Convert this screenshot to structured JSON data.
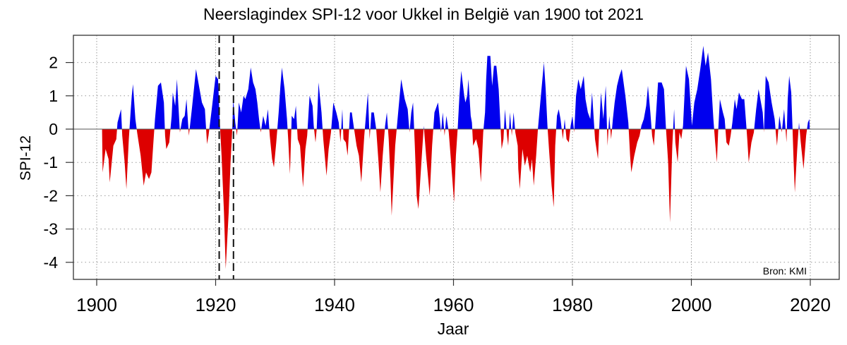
{
  "chart_data": {
    "type": "area",
    "title": "Neerslagindex SPI-12 voor Ukkel in België van 1900 tot 2021",
    "xlabel": "Jaar",
    "ylabel": "SPI-12",
    "source_note": "Bron: KMI",
    "xlim": [
      1896,
      2025
    ],
    "ylim": [
      -4.5,
      2.8
    ],
    "x_ticks": [
      1900,
      1920,
      1940,
      1960,
      1980,
      2000,
      2020
    ],
    "x_tick_labels": [
      "1900",
      "1920",
      "1940",
      "1960",
      "1980",
      "2000",
      "2020"
    ],
    "y_ticks": [
      2,
      1,
      0,
      -1,
      -2,
      -3,
      -4
    ],
    "y_tick_labels": [
      "2",
      "1",
      "0",
      "-1",
      "-2",
      "-3",
      "-4"
    ],
    "grid": true,
    "marker_lines": [
      1920.6,
      1923.0
    ],
    "colors": {
      "positive": "#0000ee",
      "negative": "#dd0000",
      "grid": "#999999"
    },
    "series": [
      [
        1900.9,
        0
      ],
      [
        1901.0,
        -1.3
      ],
      [
        1901.5,
        -0.6
      ],
      [
        1902.0,
        -0.9
      ],
      [
        1902.2,
        -1.6
      ],
      [
        1902.8,
        -0.5
      ],
      [
        1903.3,
        -0.3
      ],
      [
        1903.5,
        0.2
      ],
      [
        1904.1,
        0.6
      ],
      [
        1904.3,
        -0.2
      ],
      [
        1904.7,
        -1.0
      ],
      [
        1905.0,
        -1.8
      ],
      [
        1905.4,
        -0.3
      ],
      [
        1905.7,
        0.5
      ],
      [
        1905.9,
        1.0
      ],
      [
        1906.1,
        1.35
      ],
      [
        1906.5,
        0.3
      ],
      [
        1906.8,
        -0.1
      ],
      [
        1907.4,
        -0.8
      ],
      [
        1907.9,
        -1.7
      ],
      [
        1908.3,
        -1.3
      ],
      [
        1908.8,
        -1.5
      ],
      [
        1909.2,
        -1.3
      ],
      [
        1909.5,
        -0.5
      ],
      [
        1909.8,
        0.3
      ],
      [
        1910.3,
        1.3
      ],
      [
        1910.8,
        1.4
      ],
      [
        1911.3,
        0.8
      ],
      [
        1911.5,
        -0.2
      ],
      [
        1911.7,
        -0.6
      ],
      [
        1912.2,
        -0.4
      ],
      [
        1912.6,
        0.4
      ],
      [
        1912.8,
        1.1
      ],
      [
        1913.2,
        0.7
      ],
      [
        1913.5,
        1.5
      ],
      [
        1914.0,
        -0.1
      ],
      [
        1914.4,
        0.3
      ],
      [
        1914.8,
        0.4
      ],
      [
        1915.1,
        0.9
      ],
      [
        1915.5,
        -0.2
      ],
      [
        1916.0,
        0.6
      ],
      [
        1916.7,
        1.8
      ],
      [
        1917.2,
        1.3
      ],
      [
        1917.7,
        0.8
      ],
      [
        1918.2,
        0.6
      ],
      [
        1918.55,
        -0.45
      ],
      [
        1918.8,
        -0.2
      ],
      [
        1919.35,
        0.6
      ],
      [
        1920.0,
        1.6
      ],
      [
        1920.4,
        1.5
      ],
      [
        1920.7,
        0.2
      ],
      [
        1921.0,
        -0.8
      ],
      [
        1921.4,
        -2.5
      ],
      [
        1921.7,
        -4.2
      ],
      [
        1922.2,
        -2.5
      ],
      [
        1922.5,
        -1.0
      ],
      [
        1922.8,
        0
      ],
      [
        1922.95,
        0.9
      ],
      [
        1923.3,
        0.2
      ],
      [
        1923.6,
        -0.2
      ],
      [
        1923.9,
        0.8
      ],
      [
        1924.3,
        0.5
      ],
      [
        1924.7,
        1.0
      ],
      [
        1925.0,
        0.9
      ],
      [
        1925.5,
        1.2
      ],
      [
        1925.9,
        1.85
      ],
      [
        1926.3,
        1.4
      ],
      [
        1926.7,
        1.2
      ],
      [
        1927.0,
        0.8
      ],
      [
        1927.3,
        0.3
      ],
      [
        1927.6,
        -0.1
      ],
      [
        1928.0,
        0.4
      ],
      [
        1928.4,
        0.1
      ],
      [
        1928.8,
        0.6
      ],
      [
        1929.1,
        -0.2
      ],
      [
        1929.5,
        -0.9
      ],
      [
        1929.8,
        -1.15
      ],
      [
        1930.2,
        -0.4
      ],
      [
        1930.6,
        0.5
      ],
      [
        1930.9,
        1.3
      ],
      [
        1931.15,
        1.85
      ],
      [
        1931.6,
        1.2
      ],
      [
        1932.0,
        0.3
      ],
      [
        1932.2,
        -0.3
      ],
      [
        1932.5,
        -1.35
      ],
      [
        1932.8,
        0.4
      ],
      [
        1933.2,
        0.3
      ],
      [
        1933.5,
        0.7
      ],
      [
        1933.8,
        -0.3
      ],
      [
        1934.2,
        -0.5
      ],
      [
        1934.7,
        -1.75
      ],
      [
        1935.1,
        -0.6
      ],
      [
        1935.4,
        -0.2
      ],
      [
        1935.8,
        1.0
      ],
      [
        1936.3,
        0.7
      ],
      [
        1936.5,
        0.1
      ],
      [
        1936.8,
        -0.4
      ],
      [
        1937.0,
        0
      ],
      [
        1937.3,
        1.4
      ],
      [
        1937.8,
        0.5
      ],
      [
        1938.1,
        -0.3
      ],
      [
        1938.65,
        -1.4
      ],
      [
        1939.0,
        -0.6
      ],
      [
        1939.4,
        -0.1
      ],
      [
        1939.8,
        0.8
      ],
      [
        1940.3,
        0.5
      ],
      [
        1940.7,
        0.2
      ],
      [
        1941.0,
        -0.4
      ],
      [
        1941.3,
        0.6
      ],
      [
        1941.5,
        -0.3
      ],
      [
        1941.9,
        -0.4
      ],
      [
        1942.2,
        -0.8
      ],
      [
        1942.6,
        0.5
      ],
      [
        1942.9,
        0.5
      ],
      [
        1943.2,
        0.1
      ],
      [
        1943.7,
        -0.5
      ],
      [
        1944.1,
        -0.8
      ],
      [
        1944.5,
        -1.6
      ],
      [
        1945.0,
        -0.2
      ],
      [
        1945.6,
        1.1
      ],
      [
        1945.9,
        -0.3
      ],
      [
        1946.2,
        0.5
      ],
      [
        1946.6,
        0.5
      ],
      [
        1947.0,
        0.0
      ],
      [
        1947.4,
        -1.0
      ],
      [
        1947.7,
        -1.9
      ],
      [
        1948.1,
        -0.8
      ],
      [
        1948.5,
        0.1
      ],
      [
        1948.8,
        0.5
      ],
      [
        1949.1,
        -0.3
      ],
      [
        1949.4,
        -1.5
      ],
      [
        1949.6,
        -2.6
      ],
      [
        1950.2,
        -0.5
      ],
      [
        1950.7,
        0.5
      ],
      [
        1951.2,
        1.5
      ],
      [
        1951.8,
        0.9
      ],
      [
        1952.3,
        0.6
      ],
      [
        1952.6,
        -0.1
      ],
      [
        1952.9,
        0.5
      ],
      [
        1953.2,
        0.8
      ],
      [
        1953.5,
        -0.5
      ],
      [
        1953.8,
        -2.0
      ],
      [
        1954.1,
        -2.4
      ],
      [
        1954.6,
        -1.0
      ],
      [
        1955.0,
        0.1
      ],
      [
        1955.4,
        -0.8
      ],
      [
        1956.0,
        -2.0
      ],
      [
        1956.4,
        -0.5
      ],
      [
        1956.8,
        0.5
      ],
      [
        1957.4,
        0.8
      ],
      [
        1957.7,
        0.3
      ],
      [
        1957.9,
        -0.1
      ],
      [
        1958.2,
        0.5
      ],
      [
        1958.5,
        -0.2
      ],
      [
        1958.8,
        0.4
      ],
      [
        1959.2,
        -0.1
      ],
      [
        1959.6,
        -1.0
      ],
      [
        1960.1,
        -2.2
      ],
      [
        1960.4,
        -0.8
      ],
      [
        1960.7,
        0
      ],
      [
        1961.0,
        1.0
      ],
      [
        1961.3,
        1.75
      ],
      [
        1961.8,
        1.0
      ],
      [
        1962.0,
        0.8
      ],
      [
        1962.3,
        1.0
      ],
      [
        1962.5,
        1.5
      ],
      [
        1962.9,
        0.4
      ],
      [
        1963.1,
        0.2
      ],
      [
        1963.3,
        -0.5
      ],
      [
        1963.8,
        -0.3
      ],
      [
        1964.2,
        -0.6
      ],
      [
        1964.6,
        -1.6
      ],
      [
        1965.0,
        -0.1
      ],
      [
        1965.3,
        0.5
      ],
      [
        1965.5,
        1.5
      ],
      [
        1965.7,
        2.2
      ],
      [
        1966.2,
        2.2
      ],
      [
        1966.5,
        1.3
      ],
      [
        1966.8,
        1.9
      ],
      [
        1967.2,
        1.9
      ],
      [
        1967.6,
        1.2
      ],
      [
        1967.9,
        0.1
      ],
      [
        1968.1,
        -0.6
      ],
      [
        1968.4,
        -0.3
      ],
      [
        1968.65,
        0.6
      ],
      [
        1969.0,
        -0.2
      ],
      [
        1969.2,
        -0.5
      ],
      [
        1969.5,
        0.5
      ],
      [
        1969.8,
        -0.2
      ],
      [
        1970.1,
        0.5
      ],
      [
        1970.4,
        -0.1
      ],
      [
        1970.8,
        -0.5
      ],
      [
        1970.9,
        -1.2
      ],
      [
        1971.15,
        -1.8
      ],
      [
        1971.6,
        -0.6
      ],
      [
        1972.0,
        -1.1
      ],
      [
        1972.4,
        -0.8
      ],
      [
        1972.9,
        -1.3
      ],
      [
        1973.2,
        -0.9
      ],
      [
        1973.5,
        -1.7
      ],
      [
        1973.9,
        -0.8
      ],
      [
        1974.2,
        0
      ],
      [
        1974.7,
        1.0
      ],
      [
        1975.2,
        2.0
      ],
      [
        1975.5,
        1.2
      ],
      [
        1975.8,
        0.1
      ],
      [
        1976.1,
        -0.7
      ],
      [
        1976.5,
        -1.7
      ],
      [
        1976.85,
        -2.35
      ],
      [
        1977.1,
        -0.5
      ],
      [
        1977.4,
        0.4
      ],
      [
        1977.7,
        0.6
      ],
      [
        1978.0,
        0.3
      ],
      [
        1978.4,
        -0.3
      ],
      [
        1978.7,
        0.3
      ],
      [
        1979.0,
        -0.3
      ],
      [
        1979.4,
        -0.4
      ],
      [
        1979.7,
        0.1
      ],
      [
        1980.0,
        0.4
      ],
      [
        1980.3,
        -0.1
      ],
      [
        1980.6,
        1.0
      ],
      [
        1981.0,
        1.5
      ],
      [
        1981.4,
        1.2
      ],
      [
        1981.9,
        1.6
      ],
      [
        1982.2,
        0.9
      ],
      [
        1982.6,
        0.5
      ],
      [
        1983.0,
        0.3
      ],
      [
        1983.3,
        1.1
      ],
      [
        1983.8,
        -0.3
      ],
      [
        1984.3,
        -0.9
      ],
      [
        1984.5,
        0
      ],
      [
        1984.8,
        1.1
      ],
      [
        1985.2,
        0.3
      ],
      [
        1985.6,
        1.3
      ],
      [
        1985.9,
        -0.5
      ],
      [
        1986.2,
        0.4
      ],
      [
        1986.5,
        -0.3
      ],
      [
        1986.8,
        0.3
      ],
      [
        1987.1,
        0.8
      ],
      [
        1987.5,
        1.3
      ],
      [
        1987.9,
        1.6
      ],
      [
        1988.3,
        1.8
      ],
      [
        1988.9,
        1.0
      ],
      [
        1989.4,
        0.2
      ],
      [
        1989.7,
        -0.8
      ],
      [
        1989.9,
        -1.3
      ],
      [
        1990.4,
        -0.8
      ],
      [
        1990.9,
        -0.4
      ],
      [
        1991.3,
        -0.2
      ],
      [
        1991.6,
        0.1
      ],
      [
        1992.0,
        0.3
      ],
      [
        1992.4,
        0.7
      ],
      [
        1992.7,
        1.3
      ],
      [
        1993.1,
        0.5
      ],
      [
        1993.4,
        -0.2
      ],
      [
        1993.7,
        -0.5
      ],
      [
        1994.0,
        0.3
      ],
      [
        1994.4,
        1.4
      ],
      [
        1995.0,
        1.4
      ],
      [
        1995.4,
        1.2
      ],
      [
        1995.7,
        0.1
      ],
      [
        1996.1,
        -1.0
      ],
      [
        1996.4,
        -2.8
      ],
      [
        1996.8,
        -0.5
      ],
      [
        1997.1,
        0.6
      ],
      [
        1997.3,
        -0.4
      ],
      [
        1997.7,
        -1.0
      ],
      [
        1998.0,
        -0.1
      ],
      [
        1998.3,
        -0.3
      ],
      [
        1998.6,
        0.1
      ],
      [
        1998.9,
        1.2
      ],
      [
        1999.1,
        1.9
      ],
      [
        1999.6,
        1.5
      ],
      [
        2000.1,
        0.1
      ],
      [
        2000.5,
        0.8
      ],
      [
        2001.0,
        1.2
      ],
      [
        2001.5,
        1.8
      ],
      [
        2002.0,
        2.5
      ],
      [
        2002.4,
        1.9
      ],
      [
        2002.8,
        2.3
      ],
      [
        2003.3,
        1.5
      ],
      [
        2003.7,
        0.3
      ],
      [
        2004.0,
        -0.4
      ],
      [
        2004.3,
        -1.0
      ],
      [
        2004.5,
        -0.1
      ],
      [
        2004.8,
        0.9
      ],
      [
        2005.3,
        0.5
      ],
      [
        2005.6,
        0.3
      ],
      [
        2005.9,
        -0.4
      ],
      [
        2006.3,
        -0.5
      ],
      [
        2006.6,
        -0.2
      ],
      [
        2006.9,
        0.2
      ],
      [
        2007.3,
        0.9
      ],
      [
        2007.6,
        0.6
      ],
      [
        2008.0,
        1.1
      ],
      [
        2008.5,
        0.9
      ],
      [
        2008.9,
        0.9
      ],
      [
        2009.2,
        0.2
      ],
      [
        2009.4,
        -0.3
      ],
      [
        2009.65,
        -1.0
      ],
      [
        2010.1,
        -0.4
      ],
      [
        2010.5,
        -0.1
      ],
      [
        2010.9,
        0.6
      ],
      [
        2011.3,
        1.2
      ],
      [
        2011.7,
        0.8
      ],
      [
        2012.0,
        0.5
      ],
      [
        2012.2,
        -0.1
      ],
      [
        2012.5,
        1.6
      ],
      [
        2013.0,
        1.4
      ],
      [
        2013.5,
        0.8
      ],
      [
        2014.0,
        0.3
      ],
      [
        2014.4,
        -0.5
      ],
      [
        2014.8,
        0.4
      ],
      [
        2015.2,
        -0.1
      ],
      [
        2015.6,
        0.6
      ],
      [
        2016.0,
        -0.4
      ],
      [
        2016.2,
        0.9
      ],
      [
        2016.45,
        1.6
      ],
      [
        2016.8,
        1.1
      ],
      [
        2017.0,
        0.1
      ],
      [
        2017.2,
        -1.0
      ],
      [
        2017.4,
        -1.9
      ],
      [
        2017.8,
        -0.6
      ],
      [
        2018.1,
        0.2
      ],
      [
        2018.4,
        -0.4
      ],
      [
        2018.86,
        -1.2
      ],
      [
        2019.3,
        -0.2
      ],
      [
        2019.6,
        0.2
      ],
      [
        2019.85,
        0.3
      ],
      [
        2019.9,
        0
      ]
    ]
  }
}
